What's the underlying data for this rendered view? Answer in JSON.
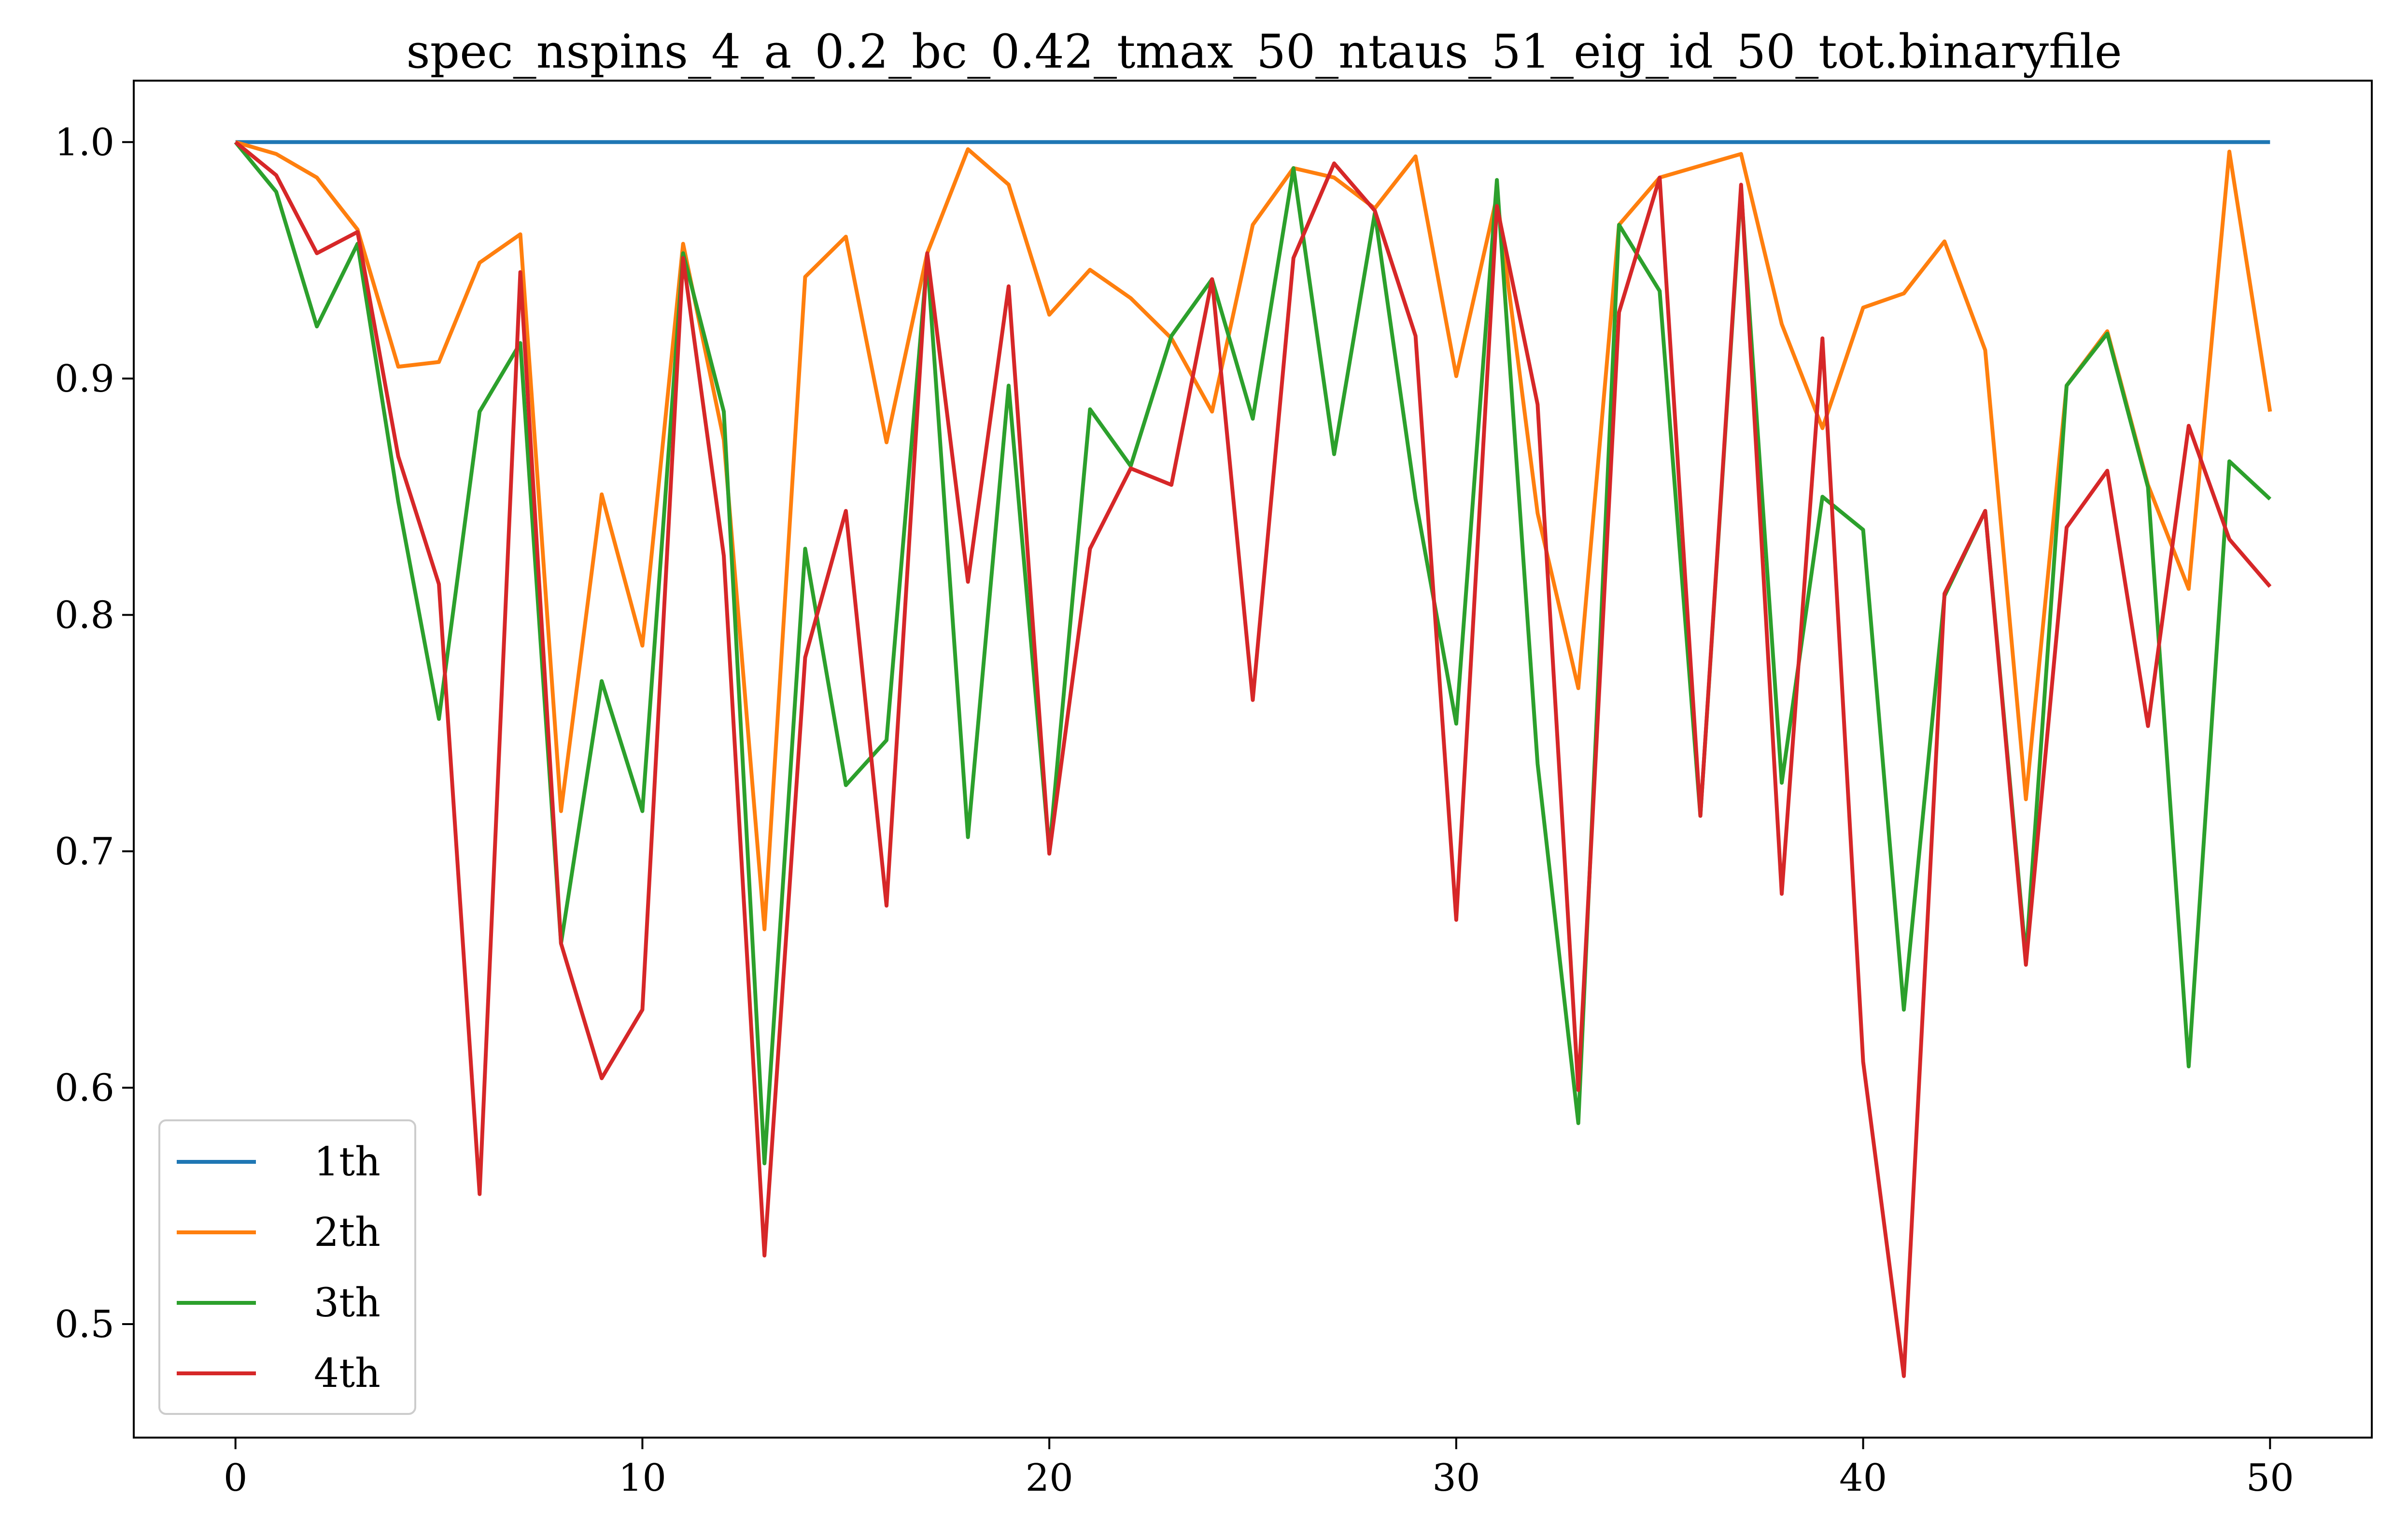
{
  "chart_data": {
    "type": "line",
    "title": "spec_nspins_4_a_0.2_bc_0.42_tmax_50_ntaus_51_eig_id_50_tot.binaryfile",
    "xlabel": "",
    "ylabel": "",
    "xlim": [
      -2.5,
      52.5
    ],
    "ylim": [
      0.452,
      1.026
    ],
    "xticks": [
      0,
      10,
      20,
      30,
      40,
      50
    ],
    "xtick_labels": [
      "0",
      "10",
      "20",
      "30",
      "40",
      "50"
    ],
    "yticks": [
      0.5,
      0.6,
      0.7,
      0.8,
      0.9,
      1.0
    ],
    "ytick_labels": [
      "0.5",
      "0.6",
      "0.7",
      "0.8",
      "0.9",
      "1.0"
    ],
    "grid": false,
    "legend_position": "bottom-left",
    "x": [
      0,
      1,
      2,
      3,
      4,
      5,
      6,
      7,
      8,
      9,
      10,
      11,
      12,
      13,
      14,
      15,
      16,
      17,
      18,
      19,
      20,
      21,
      22,
      23,
      24,
      25,
      26,
      27,
      28,
      29,
      30,
      31,
      32,
      33,
      34,
      35,
      36,
      37,
      38,
      39,
      40,
      41,
      42,
      43,
      44,
      45,
      46,
      47,
      48,
      49,
      50
    ],
    "series": [
      {
        "name": "1th",
        "color": "#1f77b4",
        "values": [
          1.0,
          1.0,
          1.0,
          1.0,
          1.0,
          1.0,
          1.0,
          1.0,
          1.0,
          1.0,
          1.0,
          1.0,
          1.0,
          1.0,
          1.0,
          1.0,
          1.0,
          1.0,
          1.0,
          1.0,
          1.0,
          1.0,
          1.0,
          1.0,
          1.0,
          1.0,
          1.0,
          1.0,
          1.0,
          1.0,
          1.0,
          1.0,
          1.0,
          1.0,
          1.0,
          1.0,
          1.0,
          1.0,
          1.0,
          1.0,
          1.0,
          1.0,
          1.0,
          1.0,
          1.0,
          1.0,
          1.0,
          1.0,
          1.0,
          1.0,
          1.0
        ]
      },
      {
        "name": "2th",
        "color": "#ff7f0e",
        "values": [
          1.0,
          0.995,
          0.985,
          0.963,
          0.905,
          0.907,
          0.949,
          0.961,
          0.717,
          0.851,
          0.787,
          0.957,
          0.874,
          0.667,
          0.943,
          0.96,
          0.873,
          0.953,
          0.997,
          0.982,
          0.927,
          0.946,
          0.934,
          0.917,
          0.886,
          0.965,
          0.989,
          0.985,
          0.972,
          0.994,
          0.901,
          0.977,
          0.843,
          0.769,
          0.965,
          0.985,
          0.99,
          0.995,
          0.923,
          0.879,
          0.93,
          0.936,
          0.958,
          0.912,
          0.722,
          0.897,
          0.92,
          0.855,
          0.811,
          0.996,
          0.886
        ]
      },
      {
        "name": "3th",
        "color": "#2ca02c",
        "values": [
          1.0,
          0.979,
          0.922,
          0.957,
          0.848,
          0.756,
          0.886,
          0.915,
          0.661,
          0.772,
          0.717,
          0.953,
          0.886,
          0.568,
          0.828,
          0.728,
          0.747,
          0.951,
          0.706,
          0.897,
          0.7,
          0.887,
          0.863,
          0.918,
          0.942,
          0.883,
          0.989,
          0.868,
          0.97,
          0.849,
          0.754,
          0.984,
          0.737,
          0.585,
          0.965,
          0.937,
          0.715,
          0.98,
          0.729,
          0.85,
          0.836,
          0.633,
          0.808,
          0.844,
          0.655,
          0.897,
          0.919,
          0.854,
          0.609,
          0.865,
          0.849
        ]
      },
      {
        "name": "4th",
        "color": "#d62728",
        "values": [
          1.0,
          0.986,
          0.953,
          0.962,
          0.867,
          0.813,
          0.555,
          0.945,
          0.661,
          0.604,
          0.633,
          0.951,
          0.825,
          0.529,
          0.782,
          0.844,
          0.677,
          0.953,
          0.814,
          0.939,
          0.699,
          0.828,
          0.862,
          0.855,
          0.942,
          0.764,
          0.951,
          0.991,
          0.971,
          0.918,
          0.671,
          0.973,
          0.889,
          0.599,
          0.928,
          0.985,
          0.715,
          0.982,
          0.682,
          0.917,
          0.611,
          0.478,
          0.809,
          0.844,
          0.652,
          0.837,
          0.861,
          0.753,
          0.88,
          0.832,
          0.812
        ]
      }
    ]
  }
}
